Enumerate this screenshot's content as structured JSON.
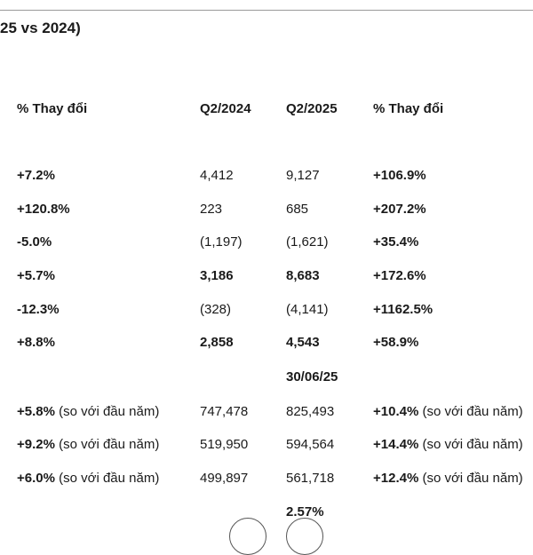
{
  "title": "25 vs 2024)",
  "headers": [
    "% Thay đổi",
    "Q2/2024",
    "Q2/2025",
    "% Thay đổi"
  ],
  "rows": [
    {
      "c1": "+7.2%",
      "c2": "4,412",
      "c3": "9,127",
      "c4": "+106.9%",
      "bold": false
    },
    {
      "c1": "+120.8%",
      "c2": "223",
      "c3": "685",
      "c4": "+207.2%",
      "bold": false
    },
    {
      "c1": "-5.0%",
      "c2": "(1,197)",
      "c3": "(1,621)",
      "c4": "+35.4%",
      "bold": false
    },
    {
      "c1": "+5.7%",
      "c2": "3,186",
      "c3": "8,683",
      "c4": "+172.6%",
      "bold": true
    },
    {
      "c1": "-12.3%",
      "c2": "(328)",
      "c3": "(4,141)",
      "c4": "+1162.5%",
      "bold": false
    },
    {
      "c1": "+8.8%",
      "c2": "2,858",
      "c3": "4,543",
      "c4": "+58.9%",
      "bold": true
    }
  ],
  "date_label": "30/06/25",
  "balance_rows": [
    {
      "c1": "+5.8%",
      "c1_note": "(so với đầu năm)",
      "c2": "747,478",
      "c3": "825,493",
      "c4": "+10.4%",
      "c4_note": "(so với đầu năm)"
    },
    {
      "c1": "+9.2%",
      "c1_note": "(so với đầu năm)",
      "c2": "519,950",
      "c3": "594,564",
      "c4": "+14.4%",
      "c4_note": "(so với đầu năm)"
    },
    {
      "c1": "+6.0%",
      "c1_note": "(so với đầu năm)",
      "c2": "499,897",
      "c3": "561,718",
      "c4": "+12.4%",
      "c4_note": "(so với đầu năm)"
    }
  ],
  "footer_value": "2.57%"
}
